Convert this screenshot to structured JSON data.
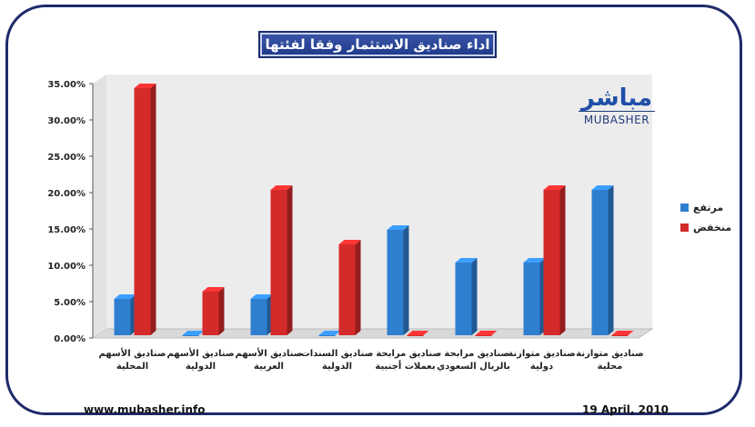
{
  "chart_data": {
    "type": "bar",
    "title": "اداء صناديق الاستثمار وفقا لفئتها",
    "categories": [
      [
        "صناديق الأسهم",
        "المحلية"
      ],
      [
        "صناديق الأسهم",
        "الدولية"
      ],
      [
        "صناديق الأسهم",
        "العربية"
      ],
      [
        "صناديق السندات",
        "الدولية"
      ],
      [
        "صناديق مرابحة -",
        "بعملات أجنبية"
      ],
      [
        "صناديق مرابحة -",
        "بالريال السعودي"
      ],
      [
        "صناديق متوازنة",
        "دولية"
      ],
      [
        "صناديق متوازنة",
        "محلية"
      ]
    ],
    "series": [
      {
        "name": "مرتفع",
        "color": "#2f7fd0",
        "values": [
          5,
          0,
          5,
          0,
          14.5,
          10,
          10,
          20
        ]
      },
      {
        "name": "منخفض",
        "color": "#d42a2a",
        "values": [
          34,
          6,
          20,
          12.5,
          0,
          0,
          20,
          0
        ]
      }
    ],
    "yticks": [
      "0.00%",
      "5.00%",
      "10.00%",
      "15.00%",
      "20.00%",
      "25.00%",
      "30.00%",
      "35.00%"
    ],
    "ylim": [
      0,
      35
    ],
    "legend_position": "right"
  },
  "logo": {
    "arabic": "مباشر",
    "english": "MUBASHER"
  },
  "footer": {
    "website": "www.mubasher.info",
    "date": "19 April, 2010"
  }
}
